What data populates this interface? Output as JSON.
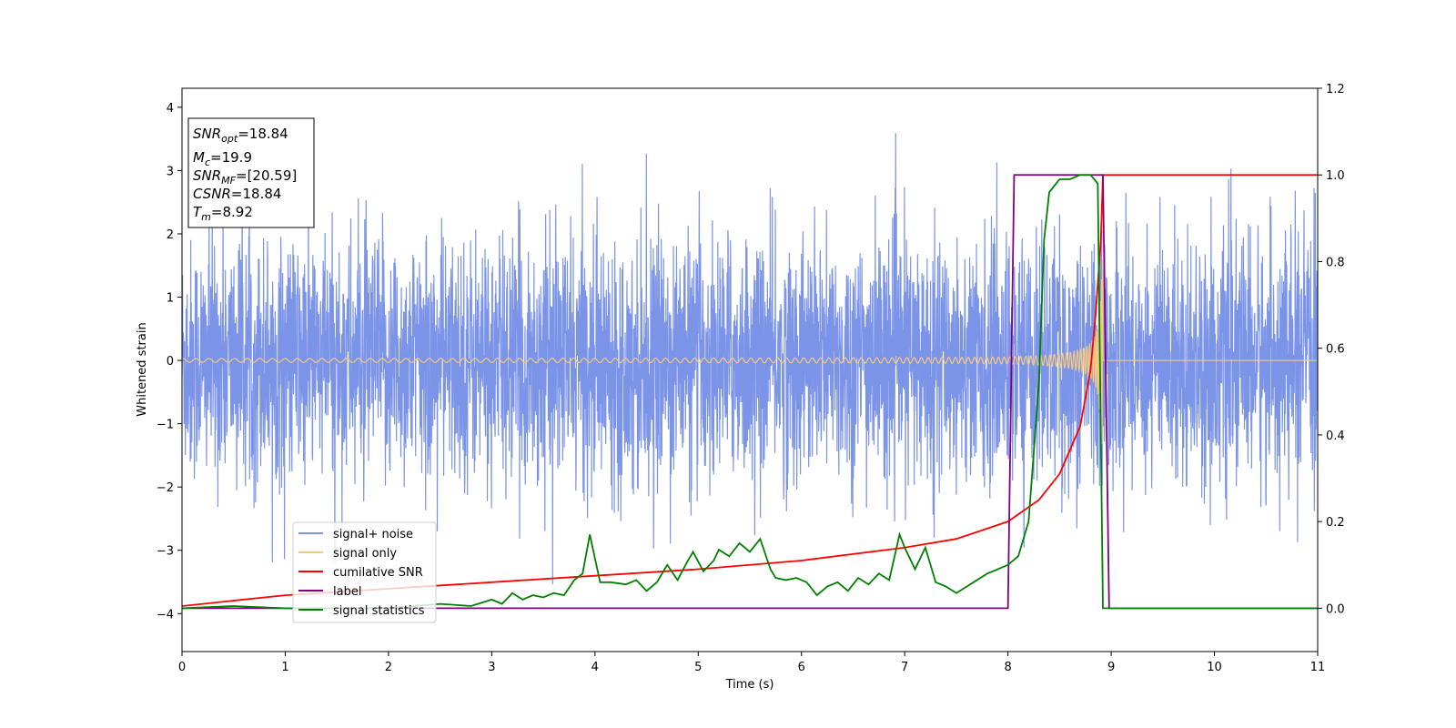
{
  "chart_data": {
    "type": "line",
    "title": "",
    "xlabel": "Time (s)",
    "ylabel": "Whitened strain",
    "xlim": [
      0,
      11
    ],
    "ylim": [
      -4.6,
      4.3
    ],
    "y2lim": [
      -0.1,
      1.2
    ],
    "x_ticks": [
      "0",
      "1",
      "2",
      "3",
      "4",
      "5",
      "6",
      "7",
      "8",
      "9",
      "10",
      "11"
    ],
    "y_ticks": [
      "−4",
      "−3",
      "−2",
      "−1",
      "0",
      "1",
      "2",
      "3",
      "4"
    ],
    "y2_ticks": [
      "0.0",
      "0.2",
      "0.4",
      "0.6",
      "0.8",
      "1.0",
      "1.2"
    ],
    "grid": false,
    "legend_position": "lower-left",
    "info_box": [
      {
        "var": "SNR",
        "sub": "opt",
        "value": "=18.84"
      },
      {
        "var": "M",
        "sub": "c",
        "value": "=19.9"
      },
      {
        "var": "SNR",
        "sub": "MF",
        "value": "=[20.59]"
      },
      {
        "var": "CSNR",
        "sub": "",
        "value": "=18.84"
      },
      {
        "var": "T",
        "sub": "m",
        "value": "=8.92"
      }
    ],
    "series": [
      {
        "name": "signal+ noise",
        "color": "#7b94e8",
        "axis": "left",
        "description_values": {
          "x_range": [
            0,
            11
          ],
          "std": 1.0,
          "max": 3.9,
          "min": -4.07
        }
      },
      {
        "name": "signal only",
        "color": "#f7c97e",
        "axis": "left",
        "description_values": {
          "x_range": [
            0,
            8.92
          ],
          "amplitude_start": 0.03,
          "amplitude_peak": 1.6,
          "merger_time": 8.92
        }
      },
      {
        "name": "cumilative SNR",
        "color": "#ff0000",
        "axis": "right",
        "x": [
          0,
          1,
          2,
          3,
          4,
          5,
          6,
          7,
          7.5,
          8,
          8.3,
          8.5,
          8.7,
          8.8,
          8.85,
          8.9,
          8.92,
          11
        ],
        "y": [
          0.005,
          0.03,
          0.045,
          0.06,
          0.075,
          0.09,
          0.11,
          0.14,
          0.16,
          0.2,
          0.25,
          0.31,
          0.42,
          0.55,
          0.68,
          0.85,
          1.0,
          1.0
        ]
      },
      {
        "name": "label",
        "color": "#800080",
        "axis": "right",
        "x": [
          0,
          8.0,
          8.06,
          8.92,
          8.98,
          11
        ],
        "y": [
          0.0,
          0.0,
          1.0,
          1.0,
          0.0,
          0.0
        ]
      },
      {
        "name": "signal statistics",
        "color": "#008000",
        "axis": "right",
        "x": [
          0,
          0.5,
          1,
          1.5,
          2,
          2.5,
          2.8,
          3.0,
          3.1,
          3.2,
          3.3,
          3.4,
          3.5,
          3.6,
          3.7,
          3.8,
          3.88,
          3.95,
          4.05,
          4.15,
          4.3,
          4.4,
          4.5,
          4.6,
          4.7,
          4.8,
          4.9,
          4.95,
          5.05,
          5.15,
          5.2,
          5.3,
          5.4,
          5.5,
          5.6,
          5.7,
          5.75,
          5.85,
          5.95,
          6.05,
          6.15,
          6.25,
          6.35,
          6.45,
          6.55,
          6.65,
          6.75,
          6.85,
          6.95,
          7.0,
          7.1,
          7.2,
          7.3,
          7.4,
          7.5,
          7.6,
          7.7,
          7.8,
          7.9,
          8.0,
          8.1,
          8.2,
          8.3,
          8.35,
          8.4,
          8.5,
          8.6,
          8.7,
          8.8,
          8.87,
          8.92,
          8.98,
          9.05,
          11
        ],
        "y": [
          0.0,
          0.005,
          0.0,
          0.0,
          0.0,
          0.01,
          0.005,
          0.02,
          0.01,
          0.035,
          0.02,
          0.03,
          0.025,
          0.035,
          0.03,
          0.065,
          0.08,
          0.17,
          0.06,
          0.06,
          0.055,
          0.065,
          0.04,
          0.06,
          0.1,
          0.065,
          0.11,
          0.13,
          0.085,
          0.11,
          0.135,
          0.12,
          0.15,
          0.13,
          0.16,
          0.09,
          0.07,
          0.065,
          0.07,
          0.06,
          0.03,
          0.05,
          0.06,
          0.04,
          0.07,
          0.055,
          0.08,
          0.065,
          0.17,
          0.14,
          0.09,
          0.14,
          0.06,
          0.05,
          0.035,
          0.05,
          0.065,
          0.08,
          0.09,
          0.1,
          0.12,
          0.2,
          0.52,
          0.85,
          0.96,
          0.99,
          0.99,
          1.0,
          1.0,
          0.98,
          0.0,
          0.0,
          0.0,
          0.0
        ]
      }
    ]
  }
}
